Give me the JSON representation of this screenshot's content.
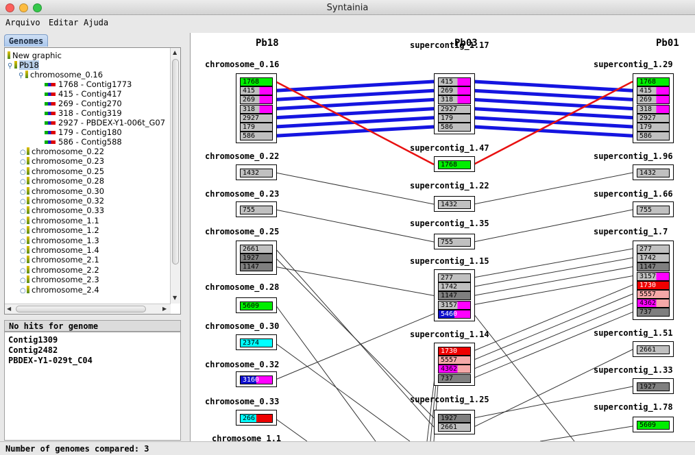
{
  "window": {
    "title": "Syntainia"
  },
  "menu": [
    "Arquivo",
    "Editar",
    "Ajuda"
  ],
  "left_tab": "Genomes",
  "tree": {
    "root": "New graphic",
    "genome": "Pb18",
    "open_chromosome": "chromosome_0.16",
    "contigs": [
      "1768 - Contig1773",
      "415 - Contig417",
      "269 - Contig270",
      "318 - Contig319",
      "2927 - PBDEX-Y1-006t_G07",
      "179 - Contig180",
      "586 - Contig588"
    ],
    "chromosomes": [
      "chromosome_0.22",
      "chromosome_0.23",
      "chromosome_0.25",
      "chromosome_0.28",
      "chromosome_0.30",
      "chromosome_0.32",
      "chromosome_0.33",
      "chromosome_1.1",
      "chromosome_1.2",
      "chromosome_1.3",
      "chromosome_1.4",
      "chromosome_2.1",
      "chromosome_2.2",
      "chromosome_2.3",
      "chromosome_2.4"
    ]
  },
  "no_hits": {
    "title": "No hits for genome",
    "items": [
      "Contig1309",
      "Contig2482",
      "PBDEX-Y1-029t_C04"
    ]
  },
  "headers": [
    "Pb18",
    "Pb03",
    "Pb01"
  ],
  "colors": {
    "green": "#00ee00",
    "magenta": "#ff00ff",
    "gray": "#c0c0c0",
    "dark": "#7f7f7f",
    "red": "#ee0000",
    "pink": "#f5a8a8",
    "cyan": "#00ffff",
    "blue": "#1010d0"
  },
  "columns": {
    "left": [
      {
        "label": "chromosome_0.16",
        "contigs": [
          [
            "1768",
            "green"
          ],
          [
            "415",
            "magenta"
          ],
          [
            "269",
            "magenta"
          ],
          [
            "318",
            "magenta"
          ],
          [
            "2927",
            "gray"
          ],
          [
            "179",
            "gray"
          ],
          [
            "586",
            "gray"
          ]
        ]
      },
      {
        "label": "chromosome_0.22",
        "contigs": [
          [
            "1432",
            "gray"
          ]
        ]
      },
      {
        "label": "chromosome_0.23",
        "contigs": [
          [
            "755",
            "gray"
          ]
        ]
      },
      {
        "label": "chromosome_0.25",
        "contigs": [
          [
            "2661",
            "gray"
          ],
          [
            "1927",
            "dark"
          ],
          [
            "1147",
            "dark"
          ]
        ]
      },
      {
        "label": "chromosome_0.28",
        "contigs": [
          [
            "5609",
            "green"
          ]
        ]
      },
      {
        "label": "chromosome_0.30",
        "contigs": [
          [
            "2374",
            "cyan"
          ]
        ]
      },
      {
        "label": "chromosome_0.32",
        "contigs": [
          [
            "3160",
            "blue-magenta"
          ]
        ]
      },
      {
        "label": "chromosome_0.33",
        "contigs": [
          [
            "266",
            "cyan-red"
          ]
        ]
      },
      {
        "label": "chromosome_1.1",
        "contigs": []
      }
    ],
    "mid": [
      {
        "label": "supercontig_1.17",
        "contigs": [
          [
            "415",
            "magenta"
          ],
          [
            "269",
            "magenta"
          ],
          [
            "318",
            "magenta"
          ],
          [
            "2927",
            "gray"
          ],
          [
            "179",
            "gray"
          ],
          [
            "586",
            "gray"
          ]
        ]
      },
      {
        "label": "supercontig_1.47",
        "contigs": [
          [
            "1768",
            "green"
          ]
        ]
      },
      {
        "label": "supercontig_1.22",
        "contigs": [
          [
            "1432",
            "gray"
          ]
        ]
      },
      {
        "label": "supercontig_1.35",
        "contigs": [
          [
            "755",
            "gray"
          ]
        ]
      },
      {
        "label": "supercontig_1.15",
        "contigs": [
          [
            "277",
            "gray"
          ],
          [
            "1742",
            "gray"
          ],
          [
            "1147",
            "dark"
          ],
          [
            "3157",
            "magenta"
          ],
          [
            "5460",
            "blue-magenta"
          ]
        ]
      },
      {
        "label": "supercontig_1.14",
        "contigs": [
          [
            "1730",
            "red"
          ],
          [
            "5557",
            "pink"
          ],
          [
            "4362",
            "magenta-pink"
          ],
          [
            "737",
            "dark"
          ]
        ]
      },
      {
        "label": "supercontig_1.25",
        "contigs": [
          [
            "1927",
            "dark"
          ],
          [
            "2661",
            "gray"
          ]
        ]
      }
    ],
    "right": [
      {
        "label": "supercontig_1.29",
        "contigs": [
          [
            "1768",
            "green"
          ],
          [
            "415",
            "magenta"
          ],
          [
            "269",
            "magenta"
          ],
          [
            "318",
            "magenta"
          ],
          [
            "2927",
            "gray"
          ],
          [
            "179",
            "gray"
          ],
          [
            "586",
            "gray"
          ]
        ]
      },
      {
        "label": "supercontig_1.96",
        "contigs": [
          [
            "1432",
            "gray"
          ]
        ]
      },
      {
        "label": "supercontig_1.66",
        "contigs": [
          [
            "755",
            "gray"
          ]
        ]
      },
      {
        "label": "supercontig_1.7",
        "contigs": [
          [
            "277",
            "gray"
          ],
          [
            "1742",
            "gray"
          ],
          [
            "1147",
            "dark"
          ],
          [
            "3157",
            "magenta"
          ],
          [
            "1730",
            "red"
          ],
          [
            "5557",
            "pink"
          ],
          [
            "4362",
            "magenta-pink"
          ],
          [
            "737",
            "dark"
          ]
        ]
      },
      {
        "label": "supercontig_1.51",
        "contigs": [
          [
            "2661",
            "gray"
          ]
        ]
      },
      {
        "label": "supercontig_1.33",
        "contigs": [
          [
            "1927",
            "dark"
          ]
        ]
      },
      {
        "label": "supercontig_1.78",
        "contigs": [
          [
            "5609",
            "green"
          ]
        ]
      }
    ]
  },
  "status": "Number of genomes compared: 3"
}
